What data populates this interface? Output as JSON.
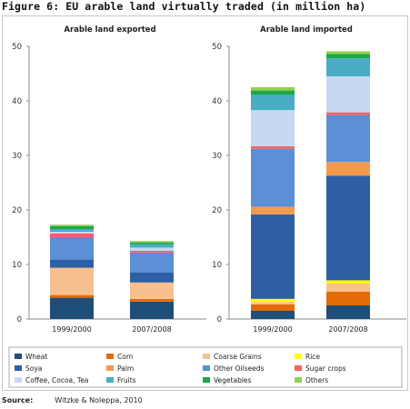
{
  "figure_title": "Figure 6:  EU arable land virtually traded (in million ha)",
  "source_label": "Source:",
  "source_text": "Witzke & Noleppa, 2010",
  "chart_data": {
    "type": "bar",
    "stacked": true,
    "title": "Figure 6:  EU arable land virtually traded (in million ha)",
    "ylim": [
      0,
      50
    ],
    "yticks": [
      0,
      10,
      20,
      30,
      40,
      50
    ],
    "legend_position": "bottom",
    "grid": false,
    "colors": {
      "Wheat": "#1f4e79",
      "Corn": "#e36c09",
      "Coarse Grains": "#f9c08f",
      "Rice": "#ffff00",
      "Soya": "#2e5fa3",
      "Palm": "#f39a4e",
      "Other Oilseeds": "#5b8fd6",
      "Sugar crops": "#f06464",
      "Coffee, Cocoa, Tea": "#c6d9f1",
      "Fruits": "#4bacc6",
      "Vegetables": "#1aa84c",
      "Others": "#92d050"
    },
    "panels": [
      {
        "title": "Arable land exported",
        "categories": [
          "1999/2000",
          "2007/2008"
        ],
        "series": [
          {
            "name": "Wheat",
            "values": [
              3.9,
              3.2
            ]
          },
          {
            "name": "Corn",
            "values": [
              0.5,
              0.5
            ]
          },
          {
            "name": "Coarse Grains",
            "values": [
              5.0,
              3.0
            ]
          },
          {
            "name": "Rice",
            "values": [
              0.0,
              0.0
            ]
          },
          {
            "name": "Soya",
            "values": [
              1.5,
              1.8
            ]
          },
          {
            "name": "Palm",
            "values": [
              0.0,
              0.0
            ]
          },
          {
            "name": "Other Oilseeds",
            "values": [
              4.1,
              3.7
            ]
          },
          {
            "name": "Sugar crops",
            "values": [
              0.7,
              0.3
            ]
          },
          {
            "name": "Coffee, Cocoa, Tea",
            "values": [
              0.3,
              0.6
            ]
          },
          {
            "name": "Fruits",
            "values": [
              0.5,
              0.6
            ]
          },
          {
            "name": "Vegetables",
            "values": [
              0.5,
              0.3
            ]
          },
          {
            "name": "Others",
            "values": [
              0.3,
              0.3
            ]
          }
        ]
      },
      {
        "title": "Arable land imported",
        "categories": [
          "1999/2000",
          "2007/2008"
        ],
        "series": [
          {
            "name": "Wheat",
            "values": [
              1.5,
              2.5
            ]
          },
          {
            "name": "Corn",
            "values": [
              1.2,
              2.5
            ]
          },
          {
            "name": "Coarse Grains",
            "values": [
              0.4,
              1.5
            ]
          },
          {
            "name": "Rice",
            "values": [
              0.6,
              0.6
            ]
          },
          {
            "name": "Soya",
            "values": [
              15.5,
              19.2
            ]
          },
          {
            "name": "Palm",
            "values": [
              1.4,
              2.5
            ]
          },
          {
            "name": "Other Oilseeds",
            "values": [
              10.6,
              8.6
            ]
          },
          {
            "name": "Sugar crops",
            "values": [
              0.5,
              0.5
            ]
          },
          {
            "name": "Coffee, Cocoa, Tea",
            "values": [
              6.6,
              6.6
            ]
          },
          {
            "name": "Fruits",
            "values": [
              2.8,
              3.3
            ]
          },
          {
            "name": "Vegetables",
            "values": [
              0.8,
              0.8
            ]
          },
          {
            "name": "Others",
            "values": [
              0.6,
              0.5
            ]
          }
        ]
      }
    ]
  }
}
